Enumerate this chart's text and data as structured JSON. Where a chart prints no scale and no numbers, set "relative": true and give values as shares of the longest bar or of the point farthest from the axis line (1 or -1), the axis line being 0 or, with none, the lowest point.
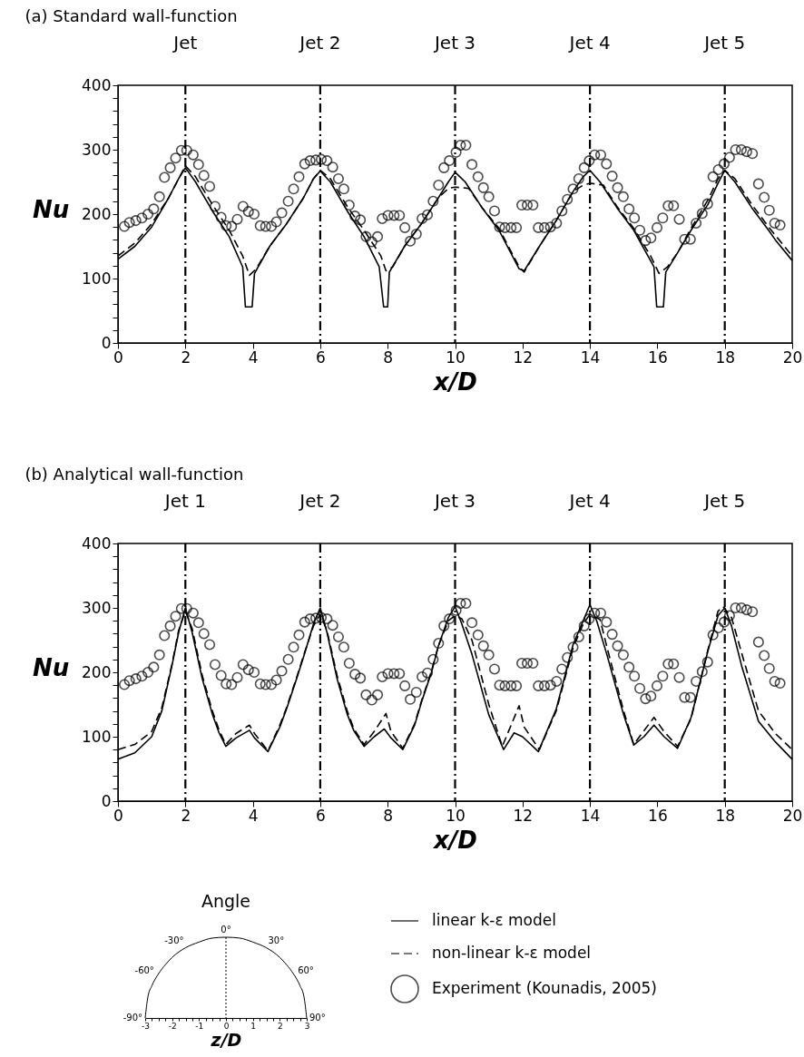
{
  "chart_data": [
    {
      "type": "line",
      "title": "(a) Standard wall-function",
      "xlabel": "x/D",
      "ylabel": "Nu",
      "xlim": [
        0,
        20
      ],
      "xticks": [
        0,
        2,
        4,
        6,
        8,
        10,
        12,
        14,
        16,
        18,
        20
      ],
      "ylim": [
        0,
        400
      ],
      "yticks": [
        0,
        {
          "value": 20,
          "label": null
        },
        {
          "value": 40,
          "label": null
        },
        {
          "value": 60,
          "label": null
        },
        {
          "value": 80,
          "label": null
        },
        100,
        {
          "value": 120,
          "label": null
        },
        {
          "value": 140,
          "label": null
        },
        {
          "value": 160,
          "label": null
        },
        {
          "value": 180,
          "label": null
        },
        200,
        {
          "value": 220,
          "label": null
        },
        {
          "value": 240,
          "label": null
        },
        {
          "value": 260,
          "label": null
        },
        {
          "value": 280,
          "label": null
        },
        300,
        {
          "value": 320,
          "label": null
        },
        {
          "value": 340,
          "label": null
        },
        {
          "value": 360,
          "label": null
        },
        {
          "value": 380,
          "label": null
        },
        400
      ],
      "ref_lines": [
        {
          "axis": "x",
          "value": 2,
          "label": "Jet"
        },
        {
          "axis": "x",
          "value": 6,
          "label": "Jet 2"
        },
        {
          "axis": "x",
          "value": 10,
          "label": "Jet 3"
        },
        {
          "axis": "x",
          "value": 14,
          "label": "Jet 4"
        },
        {
          "axis": "x",
          "value": 18,
          "label": "Jet 5"
        }
      ],
      "series": [
        {
          "type": "line",
          "color": "#000000",
          "line_style": "solid",
          "x": [
            0,
            0.5,
            1,
            1.5,
            1.8,
            2,
            2.3,
            2.8,
            3.3,
            3.7,
            3.78,
            3.98,
            4.05,
            4.5,
            5,
            5.5,
            5.8,
            6,
            6.3,
            6.8,
            7.3,
            7.75,
            7.88,
            8.0,
            8.05,
            8.5,
            9,
            9.5,
            9.8,
            10,
            10.3,
            10.8,
            11.3,
            11.9,
            12.05,
            12.5,
            13,
            13.5,
            13.8,
            14,
            14.3,
            14.8,
            15.3,
            15.9,
            15.98,
            16.18,
            16.25,
            16.6,
            17,
            17.5,
            17.8,
            18,
            18.3,
            18.8,
            19.3,
            19.5,
            20
          ],
          "values": [
            130,
            150,
            180,
            225,
            255,
            272,
            250,
            205,
            165,
            118,
            56,
            56,
            108,
            150,
            185,
            225,
            255,
            267,
            250,
            205,
            165,
            118,
            56,
            56,
            110,
            150,
            185,
            225,
            250,
            265,
            250,
            210,
            175,
            115,
            112,
            150,
            190,
            235,
            258,
            268,
            250,
            210,
            175,
            118,
            56,
            56,
            110,
            140,
            175,
            215,
            248,
            268,
            250,
            210,
            175,
            160,
            128
          ]
        },
        {
          "type": "line",
          "color": "#000000",
          "line_style": "dashed",
          "x": [
            0,
            0.5,
            1,
            1.5,
            1.8,
            2,
            2.3,
            2.8,
            3.3,
            3.7,
            3.9,
            4.1,
            4.5,
            5,
            5.5,
            5.8,
            6,
            6.3,
            6.8,
            7.3,
            7.8,
            7.95,
            8.15,
            8.5,
            9,
            9.5,
            9.8,
            10,
            10.4,
            10.8,
            11.3,
            11.9,
            12.05,
            12.5,
            13,
            13.5,
            13.8,
            14,
            14.4,
            14.8,
            15.3,
            15.8,
            16.05,
            16.3,
            16.6,
            17,
            17.5,
            17.8,
            18,
            18.3,
            18.8,
            19.3,
            20
          ],
          "values": [
            135,
            155,
            185,
            225,
            255,
            275,
            258,
            215,
            175,
            135,
            105,
            115,
            150,
            185,
            225,
            255,
            268,
            255,
            212,
            175,
            135,
            112,
            118,
            150,
            185,
            225,
            240,
            242,
            240,
            210,
            178,
            118,
            110,
            150,
            190,
            235,
            245,
            248,
            245,
            212,
            178,
            135,
            108,
            118,
            140,
            178,
            222,
            255,
            268,
            255,
            215,
            180,
            135
          ]
        },
        {
          "type": "scatter",
          "marker": "circle",
          "color": "#000000",
          "x": [
            0.19,
            0.34,
            0.53,
            0.71,
            0.89,
            1.06,
            1.23,
            1.38,
            1.55,
            1.71,
            1.88,
            2.04,
            2.23,
            2.39,
            2.55,
            2.72,
            2.88,
            3.06,
            3.21,
            3.37,
            3.54,
            3.71,
            3.87,
            4.04,
            4.22,
            4.38,
            4.55,
            4.7,
            4.86,
            5.05,
            5.21,
            5.37,
            5.54,
            5.7,
            5.87,
            6.03,
            6.2,
            6.37,
            6.54,
            6.7,
            6.86,
            7.03,
            7.19,
            7.36,
            7.53,
            7.7,
            7.84,
            8.01,
            8.19,
            8.35,
            8.51,
            8.67,
            8.85,
            9.02,
            9.18,
            9.35,
            9.51,
            9.67,
            9.83,
            10.03,
            10.16,
            10.32,
            10.5,
            10.68,
            10.84,
            11.0,
            11.17,
            11.32,
            11.48,
            11.66,
            11.82,
            11.98,
            12.14,
            12.31,
            12.47,
            12.65,
            12.83,
            13.01,
            13.17,
            13.33,
            13.5,
            13.67,
            13.83,
            13.98,
            14.14,
            14.32,
            14.49,
            14.66,
            14.82,
            14.99,
            15.16,
            15.32,
            15.48,
            15.65,
            15.81,
            15.99,
            16.16,
            16.32,
            16.48,
            16.65,
            16.81,
            16.98,
            17.15,
            17.33,
            17.49,
            17.65,
            17.81,
            17.98,
            18.14,
            18.32,
            18.49,
            18.65,
            18.82,
            19.0,
            19.17,
            19.32,
            19.48,
            19.64
          ],
          "values": [
            181,
            187,
            190,
            194,
            200,
            208,
            227,
            257,
            272,
            287,
            299,
            299,
            292,
            277,
            260,
            243,
            212,
            195,
            182,
            181,
            192,
            212,
            204,
            200,
            182,
            181,
            181,
            188,
            202,
            220,
            239,
            258,
            278,
            283,
            284,
            285,
            283,
            273,
            255,
            239,
            214,
            197,
            191,
            165,
            157,
            165,
            193,
            198,
            198,
            198,
            179,
            158,
            169,
            193,
            199,
            220,
            245,
            272,
            283,
            296,
            307,
            307,
            277,
            258,
            241,
            227,
            205,
            180,
            179,
            179,
            179,
            214,
            214,
            214,
            179,
            179,
            180,
            186,
            205,
            223,
            239,
            255,
            272,
            283,
            292,
            292,
            278,
            259,
            241,
            227,
            208,
            194,
            175,
            159,
            163,
            179,
            194,
            213,
            213,
            192,
            161,
            161,
            186,
            201,
            216,
            258,
            269,
            278,
            288,
            300,
            300,
            297,
            294,
            247,
            226,
            206,
            186,
            183
          ]
        }
      ]
    },
    {
      "type": "line",
      "title": "(b) Analytical wall-function",
      "xlabel": "x/D",
      "ylabel": "Nu",
      "xlim": [
        0,
        20
      ],
      "xticks": [
        0,
        2,
        4,
        6,
        8,
        10,
        12,
        14,
        16,
        18,
        20
      ],
      "ylim": [
        0,
        400
      ],
      "yticks": [
        0,
        {
          "value": 20,
          "label": null
        },
        {
          "value": 40,
          "label": null
        },
        {
          "value": 60,
          "label": null
        },
        {
          "value": 80,
          "label": null
        },
        100,
        {
          "value": 120,
          "label": null
        },
        {
          "value": 140,
          "label": null
        },
        {
          "value": 160,
          "label": null
        },
        {
          "value": 180,
          "label": null
        },
        200,
        {
          "value": 220,
          "label": null
        },
        {
          "value": 240,
          "label": null
        },
        {
          "value": 260,
          "label": null
        },
        {
          "value": 280,
          "label": null
        },
        300,
        {
          "value": 320,
          "label": null
        },
        {
          "value": 340,
          "label": null
        },
        {
          "value": 360,
          "label": null
        },
        {
          "value": 380,
          "label": null
        },
        400
      ],
      "legend": "bottom",
      "ref_lines": [
        {
          "axis": "x",
          "value": 2,
          "label": "Jet 1"
        },
        {
          "axis": "x",
          "value": 6,
          "label": "Jet 2"
        },
        {
          "axis": "x",
          "value": 10,
          "label": "Jet 3"
        },
        {
          "axis": "x",
          "value": 14,
          "label": "Jet 4"
        },
        {
          "axis": "x",
          "value": 18,
          "label": "Jet 5"
        }
      ],
      "series": [
        {
          "type": "line",
          "name": "linear k-ε model",
          "color": "#000000",
          "line_style": "solid",
          "x": [
            0,
            0.5,
            1,
            1.3,
            1.6,
            1.8,
            2,
            2.2,
            2.5,
            2.8,
            3,
            3.2,
            3.5,
            3.9,
            4.05,
            4.45,
            4.8,
            5,
            5.3,
            5.5,
            5.8,
            6,
            6.2,
            6.5,
            6.8,
            7,
            7.3,
            7.6,
            7.9,
            8.1,
            8.45,
            8.8,
            9,
            9.3,
            9.5,
            9.8,
            10,
            10.2,
            10.5,
            11,
            11.44,
            11.75,
            12,
            12.47,
            13,
            13.5,
            13.8,
            14,
            14.2,
            14.5,
            15,
            15.3,
            15.6,
            15.9,
            16.2,
            16.6,
            17,
            17.5,
            17.8,
            18,
            18.2,
            18.5,
            19,
            19.5,
            20
          ],
          "values": [
            65,
            75,
            100,
            140,
            210,
            262,
            300,
            262,
            190,
            135,
            106,
            85,
            98,
            110,
            98,
            77,
            115,
            143,
            190,
            223,
            275,
            300,
            262,
            190,
            135,
            109,
            85,
            100,
            112,
            98,
            80,
            118,
            153,
            200,
            240,
            285,
            302,
            275,
            228,
            134,
            80,
            106,
            100,
            77,
            143,
            243,
            280,
            305,
            280,
            228,
            134,
            87,
            100,
            118,
            100,
            82,
            130,
            233,
            288,
            300,
            272,
            210,
            124,
            92,
            65
          ]
        },
        {
          "type": "line",
          "name": "non-linear k-ε model",
          "color": "#000000",
          "line_style": "dashed",
          "x": [
            0,
            0.5,
            1,
            1.3,
            1.6,
            1.8,
            2,
            2.2,
            2.5,
            2.8,
            3,
            3.2,
            3.5,
            3.9,
            4.05,
            4.45,
            4.8,
            5,
            5.3,
            5.5,
            5.8,
            6,
            6.2,
            6.5,
            6.8,
            7,
            7.3,
            7.6,
            7.95,
            8.1,
            8.45,
            8.8,
            9,
            9.3,
            9.5,
            9.8,
            10,
            10.2,
            10.5,
            11,
            11.4,
            11.9,
            12.05,
            12.5,
            13,
            13.5,
            13.8,
            14,
            14.3,
            14.5,
            15,
            15.3,
            15.9,
            16.2,
            16.6,
            17,
            17.5,
            17.8,
            17.95,
            18.2,
            18.5,
            19,
            19.5,
            20
          ],
          "values": [
            80,
            88,
            108,
            145,
            212,
            265,
            295,
            268,
            195,
            140,
            110,
            88,
            105,
            118,
            105,
            78,
            118,
            145,
            192,
            225,
            272,
            290,
            265,
            195,
            140,
            112,
            88,
            108,
            136,
            108,
            82,
            120,
            155,
            202,
            240,
            280,
            288,
            283,
            250,
            150,
            85,
            148,
            115,
            80,
            140,
            238,
            275,
            290,
            282,
            240,
            140,
            88,
            130,
            108,
            85,
            128,
            235,
            295,
            302,
            285,
            230,
            140,
            105,
            80
          ]
        },
        {
          "type": "scatter",
          "name": "Experiment (Kounadis, 2005)",
          "marker": "circle",
          "color": "#000000",
          "x": [
            0.19,
            0.34,
            0.53,
            0.71,
            0.89,
            1.06,
            1.23,
            1.38,
            1.55,
            1.71,
            1.88,
            2.04,
            2.23,
            2.39,
            2.55,
            2.72,
            2.88,
            3.06,
            3.21,
            3.37,
            3.54,
            3.71,
            3.87,
            4.04,
            4.22,
            4.38,
            4.55,
            4.7,
            4.86,
            5.05,
            5.21,
            5.37,
            5.54,
            5.7,
            5.87,
            6.03,
            6.2,
            6.37,
            6.54,
            6.7,
            6.86,
            7.03,
            7.19,
            7.36,
            7.53,
            7.7,
            7.84,
            8.01,
            8.19,
            8.35,
            8.51,
            8.67,
            8.85,
            9.02,
            9.18,
            9.35,
            9.51,
            9.67,
            9.83,
            10.03,
            10.16,
            10.32,
            10.5,
            10.68,
            10.84,
            11.0,
            11.17,
            11.32,
            11.48,
            11.66,
            11.82,
            11.98,
            12.14,
            12.31,
            12.47,
            12.65,
            12.83,
            13.01,
            13.17,
            13.33,
            13.5,
            13.67,
            13.83,
            13.98,
            14.14,
            14.32,
            14.49,
            14.66,
            14.82,
            14.99,
            15.16,
            15.32,
            15.48,
            15.65,
            15.81,
            15.99,
            16.16,
            16.32,
            16.48,
            16.65,
            16.81,
            16.98,
            17.15,
            17.33,
            17.49,
            17.65,
            17.81,
            17.98,
            18.14,
            18.32,
            18.49,
            18.65,
            18.82,
            19.0,
            19.17,
            19.32,
            19.48,
            19.64
          ],
          "values": [
            181,
            187,
            190,
            194,
            200,
            208,
            227,
            257,
            272,
            287,
            299,
            299,
            292,
            277,
            260,
            243,
            212,
            195,
            182,
            181,
            192,
            212,
            204,
            200,
            182,
            181,
            181,
            188,
            202,
            220,
            239,
            258,
            278,
            283,
            284,
            285,
            283,
            273,
            255,
            239,
            214,
            197,
            191,
            165,
            157,
            165,
            193,
            198,
            198,
            198,
            179,
            158,
            169,
            193,
            199,
            220,
            245,
            272,
            283,
            296,
            307,
            307,
            277,
            258,
            241,
            227,
            205,
            180,
            179,
            179,
            179,
            214,
            214,
            214,
            179,
            179,
            180,
            186,
            205,
            223,
            239,
            255,
            272,
            283,
            292,
            292,
            278,
            259,
            241,
            227,
            208,
            194,
            175,
            159,
            163,
            179,
            194,
            213,
            213,
            192,
            161,
            161,
            186,
            201,
            216,
            258,
            269,
            278,
            288,
            300,
            300,
            297,
            294,
            247,
            226,
            206,
            186,
            183
          ]
        }
      ]
    },
    {
      "type": "line",
      "relative": true,
      "title": "Angle",
      "xlabel": "z/D",
      "xlim": [
        -3,
        3
      ],
      "xticks": [
        -3,
        {
          "value": -2.75,
          "label": null
        },
        {
          "value": -2.5,
          "label": null
        },
        {
          "value": -2.25,
          "label": null
        },
        -2,
        {
          "value": -1.75,
          "label": null
        },
        {
          "value": -1.5,
          "label": null
        },
        {
          "value": -1.25,
          "label": null
        },
        -1,
        {
          "value": -0.75,
          "label": null
        },
        {
          "value": -0.5,
          "label": null
        },
        {
          "value": -0.25,
          "label": null
        },
        0,
        {
          "value": 0.25,
          "label": null
        },
        {
          "value": 0.5,
          "label": null
        },
        {
          "value": 0.75,
          "label": null
        },
        1,
        {
          "value": 1.25,
          "label": null
        },
        {
          "value": 1.5,
          "label": null
        },
        {
          "value": 1.75,
          "label": null
        },
        2,
        {
          "value": 2.25,
          "label": null
        },
        {
          "value": 2.5,
          "label": null
        },
        {
          "value": 2.75,
          "label": null
        },
        3
      ],
      "ref_lines": [
        {
          "axis": "x",
          "value": 0,
          "line_style": "dotted"
        }
      ],
      "annotations": [
        {
          "text": "-90°",
          "x": -3,
          "y": 0
        },
        {
          "text": "-60°",
          "x": -2.6,
          "y": 0.5
        },
        {
          "text": "-30°",
          "x": -1.5,
          "y": 0.87
        },
        {
          "text": "0°",
          "x": 0,
          "y": 1
        },
        {
          "text": "30°",
          "x": 1.5,
          "y": 0.87
        },
        {
          "text": "60°",
          "x": 2.6,
          "y": 0.5
        },
        {
          "text": "90°",
          "x": 3,
          "y": 0
        }
      ],
      "series": [
        {
          "type": "line",
          "color": "#000000",
          "line_style": "solid",
          "x": [
            -3,
            -2.9,
            -2.75,
            -2.5,
            -2.25,
            -2,
            -1.5,
            -1,
            -0.5,
            0,
            0.5,
            1,
            1.5,
            2,
            2.25,
            2.5,
            2.75,
            2.9,
            3
          ],
          "values": [
            0,
            0.26,
            0.4,
            0.55,
            0.66,
            0.75,
            0.87,
            0.94,
            0.99,
            1,
            0.99,
            0.94,
            0.87,
            0.75,
            0.66,
            0.55,
            0.4,
            0.26,
            0
          ]
        }
      ]
    }
  ]
}
